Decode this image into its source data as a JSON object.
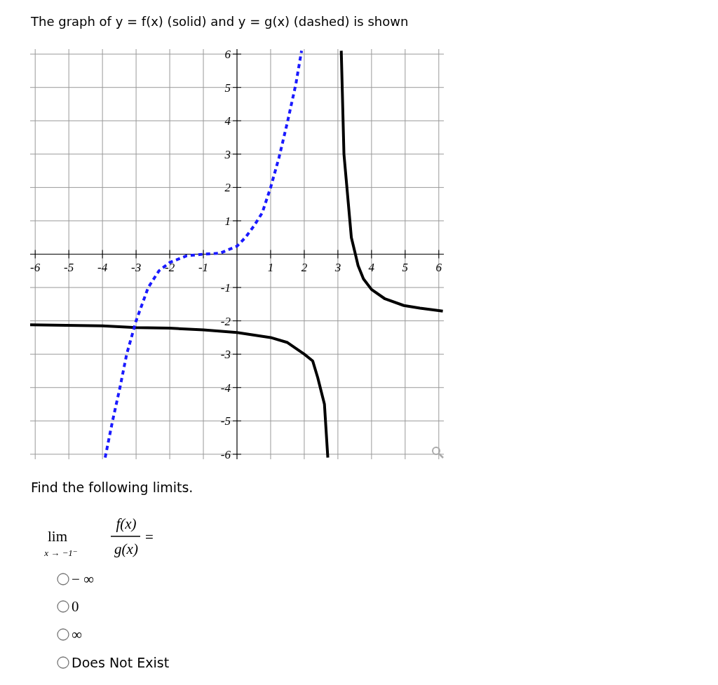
{
  "chart_data": {
    "type": "line",
    "title": "The graph of y = f(x) (solid) and y = g(x) (dashed) is shown",
    "annotations": [
      "Find the following limits.",
      "lim",
      "x → −1⁻",
      "f(x)",
      "g(x)",
      "=",
      "− ∞",
      "0",
      "∞",
      "Does Not Exist"
    ],
    "xlim": [
      -6.15,
      6.15
    ],
    "ylim": [
      -6.15,
      6.15
    ],
    "xticks": [
      -6,
      -5,
      -4,
      -3,
      -2,
      -1,
      1,
      2,
      3,
      4,
      5,
      6
    ],
    "yticks": [
      -6,
      -5,
      -4,
      -3,
      -2,
      -1,
      1,
      2,
      3,
      4,
      5,
      6
    ],
    "grid": true,
    "marker": "none",
    "series": [
      {
        "color": "#000000",
        "line_style": "solid",
        "x": [
          -6.15,
          -4,
          -3,
          -2,
          -1,
          0,
          1,
          1.5,
          2,
          2.25,
          2.4,
          2.6,
          2.7
        ],
        "values": [
          -2.12,
          -2.15,
          -2.2,
          -2.22,
          -2.27,
          -2.35,
          -2.5,
          -2.65,
          -3.0,
          -3.2,
          -3.7,
          -4.5,
          -6.1
        ]
      },
      {
        "color": "#000000",
        "line_style": "solid",
        "x": [
          3.1,
          3.18,
          3.4,
          3.52,
          3.6,
          3.76,
          4.0,
          4.4,
          4.96,
          5.44,
          6.12
        ],
        "values": [
          6.1,
          3.0,
          0.5,
          0,
          -0.34,
          -0.74,
          -1.06,
          -1.34,
          -1.54,
          -1.62,
          -1.71
        ]
      },
      {
        "color": "#1a1aff",
        "line_style": "dashed",
        "x": [
          -3.92,
          -3.7,
          -3.48,
          -3.28,
          -3.0,
          -2.64,
          -2.32,
          -2,
          -1.5,
          -1,
          -0.5,
          0,
          0.25,
          0.5,
          0.75,
          1,
          1.25,
          1.5,
          1.75,
          1.92
        ],
        "values": [
          -6.1,
          -5,
          -4,
          -3,
          -2,
          -1,
          -0.5,
          -0.25,
          -0.05,
          0,
          0.03,
          0.24,
          0.5,
          0.84,
          1.24,
          2.0,
          2.9,
          3.96,
          5.1,
          6.1
        ]
      }
    ]
  }
}
